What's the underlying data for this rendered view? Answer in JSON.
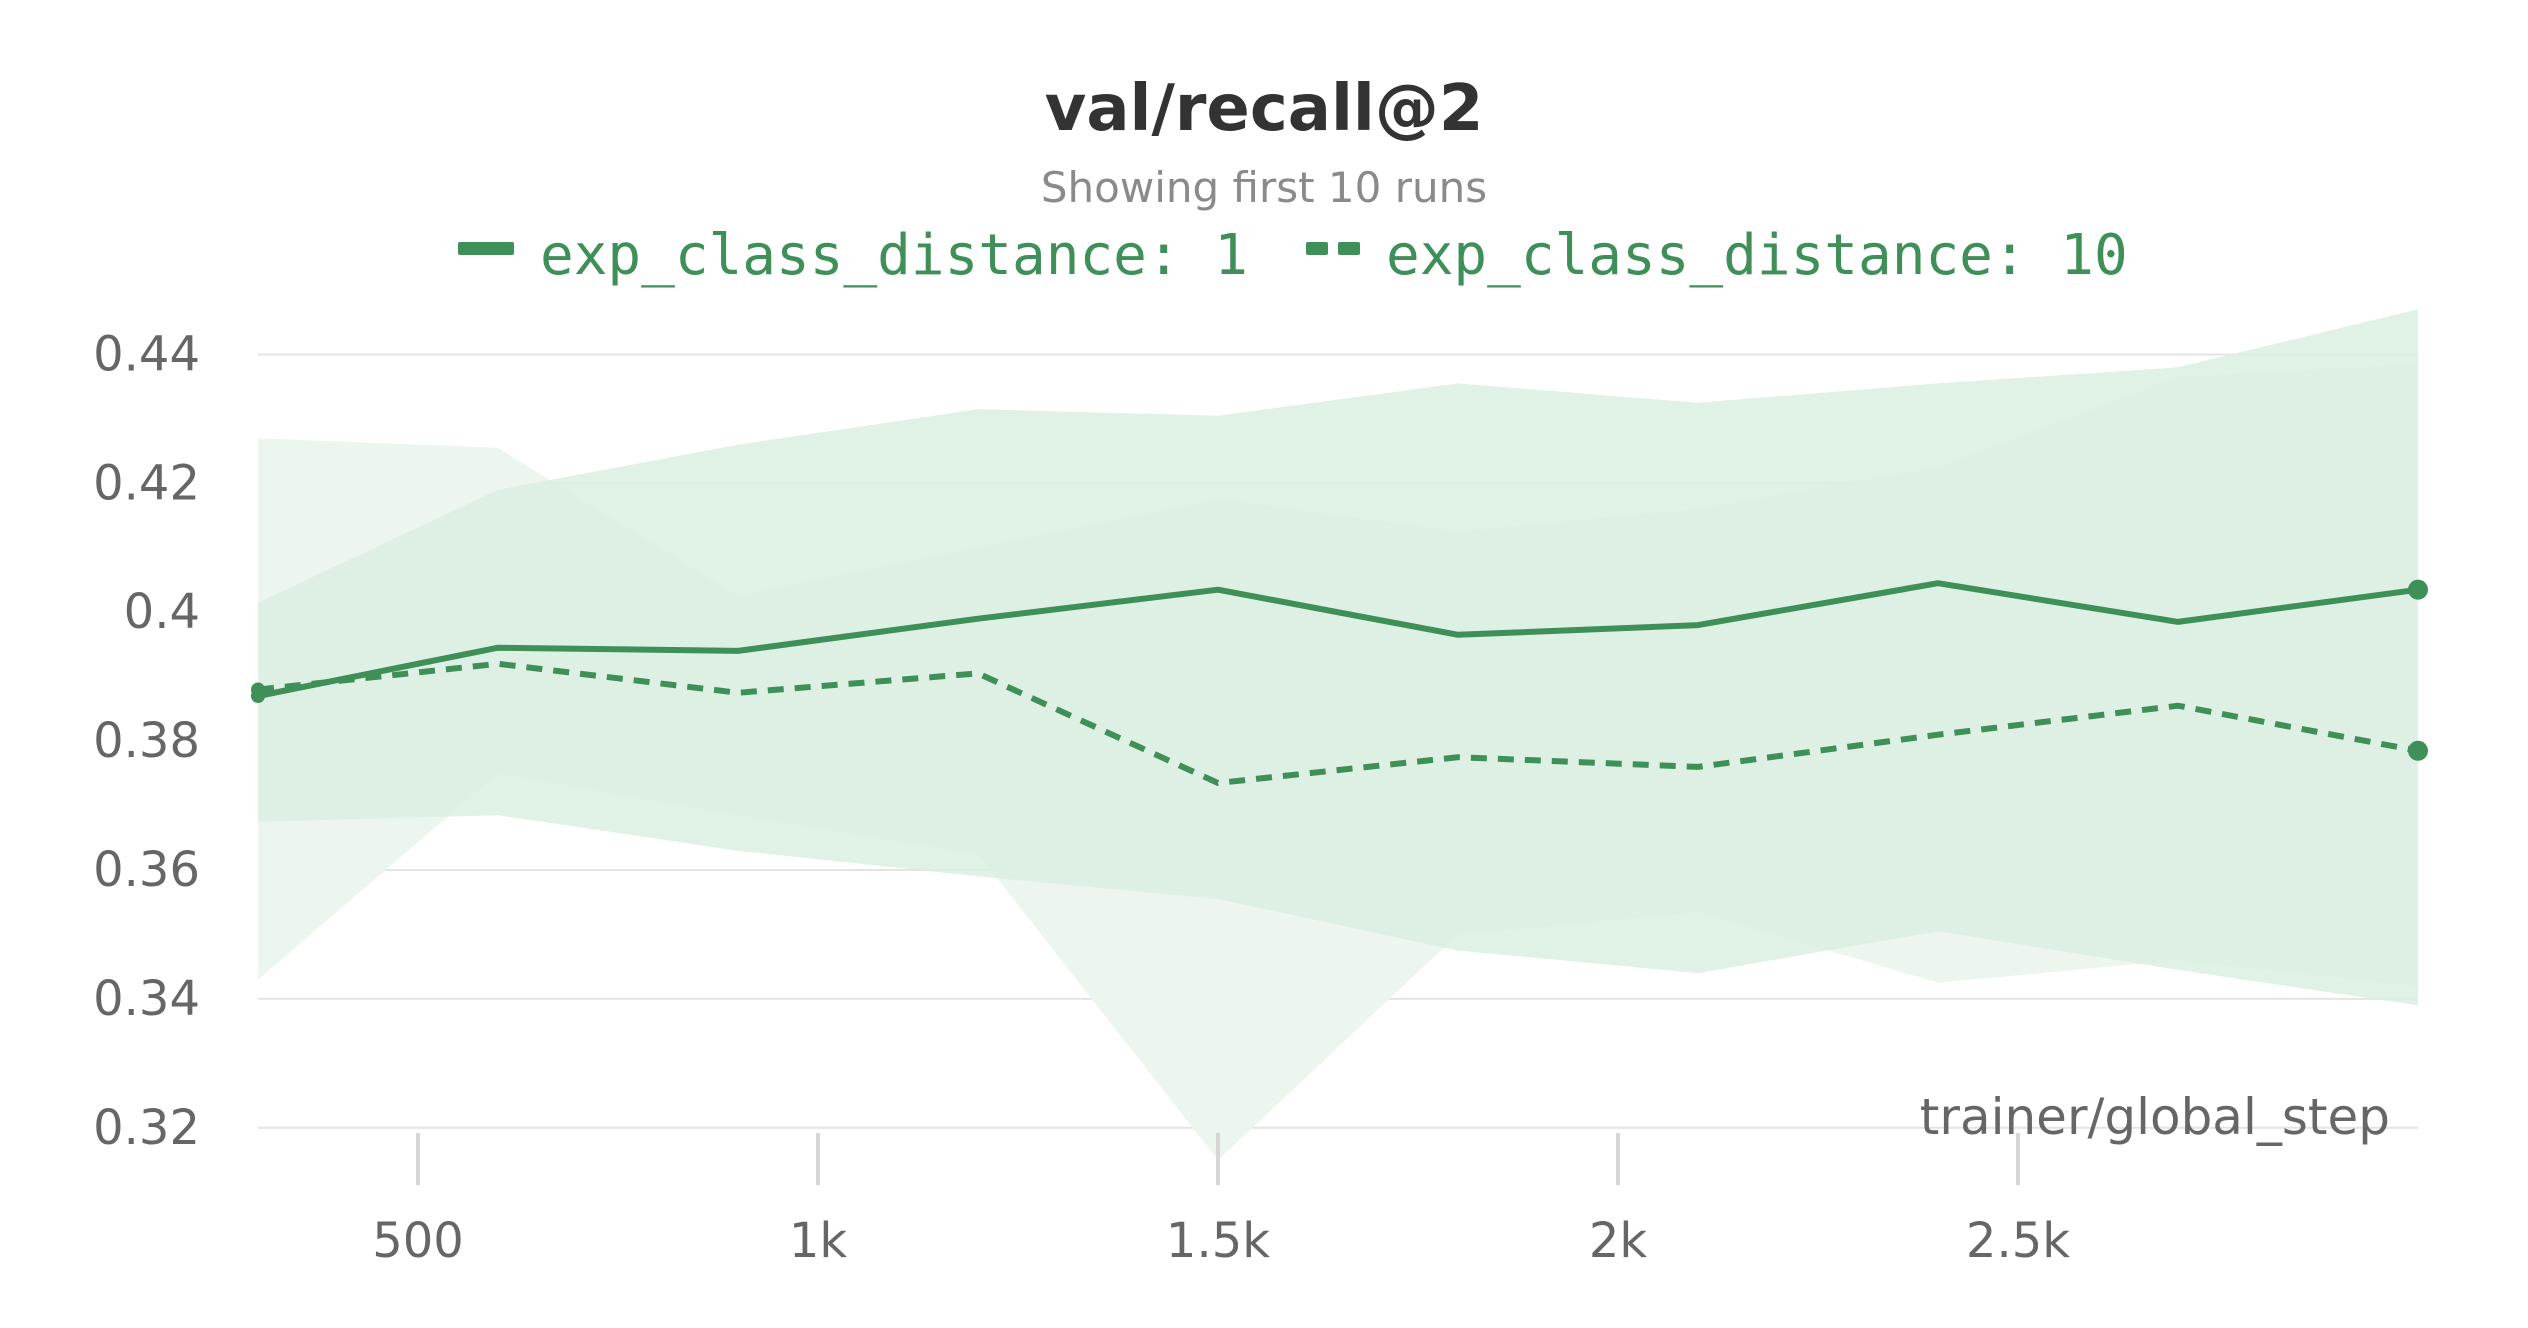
{
  "colors": {
    "series": "#3f8f58",
    "band_outer": "#ecf5ee",
    "band_inner": "#dbeee0",
    "grid": "#e4e4e4",
    "tick_mark": "#d6d6d6"
  },
  "chart_data": {
    "type": "line",
    "title": "val/recall@2",
    "subtitle": "Showing first 10 runs",
    "xlabel": "trainer/global_step",
    "ylabel": "",
    "xlim": [
      300,
      3000
    ],
    "ylim": [
      0.315,
      0.45
    ],
    "y_ticks": [
      0.32,
      0.34,
      0.36,
      0.38,
      0.4,
      0.42,
      0.44
    ],
    "y_tick_labels": [
      "0.32",
      "0.34",
      "0.36",
      "0.38",
      "0.4",
      "0.42",
      "0.44"
    ],
    "x_ticks": [
      500,
      1000,
      1500,
      2000,
      2500
    ],
    "x_tick_labels": [
      "500",
      "1k",
      "1.5k",
      "2k",
      "2.5k"
    ],
    "grid": "horizontal",
    "legend_position": "top",
    "x": [
      300,
      600,
      900,
      1200,
      1500,
      1800,
      2100,
      2400,
      2700,
      3000
    ],
    "series": [
      {
        "name": "exp_class_distance: 1",
        "style": "solid",
        "values": [
          0.387,
          0.3945,
          0.394,
          0.399,
          0.4035,
          0.3965,
          0.398,
          0.4045,
          0.3985,
          0.4035
        ],
        "band_min": [
          0.3675,
          0.3685,
          0.363,
          0.359,
          0.3555,
          0.3475,
          0.344,
          0.3505,
          0.3445,
          0.339
        ],
        "band_max": [
          0.4015,
          0.419,
          0.426,
          0.4315,
          0.4305,
          0.4355,
          0.4325,
          0.4355,
          0.438,
          0.447
        ]
      },
      {
        "name": "exp_class_distance: 10",
        "style": "dashed",
        "values": [
          0.388,
          0.392,
          0.3875,
          0.3905,
          0.3735,
          0.3775,
          0.376,
          0.381,
          0.3855,
          0.3785
        ],
        "band_min": [
          0.343,
          0.375,
          0.3685,
          0.3625,
          0.315,
          0.35,
          0.3535,
          0.3425,
          0.346,
          0.342
        ],
        "band_max": [
          0.427,
          0.4255,
          0.4025,
          0.41,
          0.4175,
          0.4125,
          0.416,
          0.4225,
          0.4365,
          0.4385
        ]
      }
    ]
  }
}
